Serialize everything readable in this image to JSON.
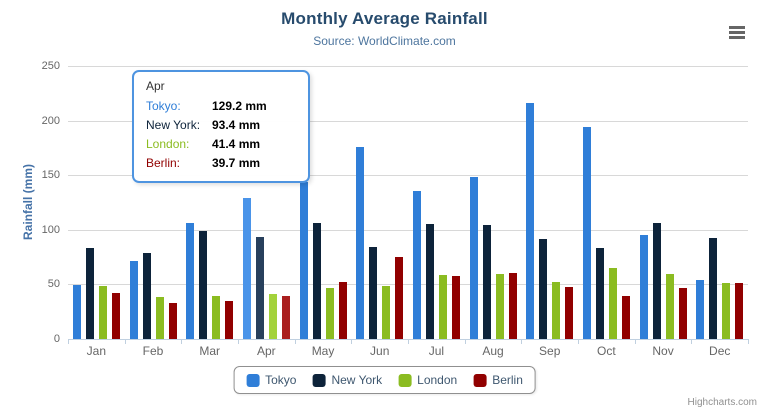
{
  "header": {
    "title": "Monthly Average Rainfall",
    "subtitle": "Source: WorldClimate.com"
  },
  "y_axis": {
    "title": "Rainfall (mm)"
  },
  "chart_data": {
    "type": "bar",
    "title": "Monthly Average Rainfall",
    "subtitle": "Source: WorldClimate.com",
    "xlabel": "",
    "ylabel": "Rainfall (mm)",
    "ylim": [
      0,
      250
    ],
    "y_ticks": [
      0,
      50,
      100,
      150,
      200,
      250
    ],
    "grid": true,
    "legend_position": "bottom-center",
    "categories": [
      "Jan",
      "Feb",
      "Mar",
      "Apr",
      "May",
      "Jun",
      "Jul",
      "Aug",
      "Sep",
      "Oct",
      "Nov",
      "Dec"
    ],
    "series": [
      {
        "name": "Tokyo",
        "color": "#2f7ed8",
        "hover_color": "#4a94e9",
        "values": [
          49.9,
          71.5,
          106.4,
          129.2,
          144.0,
          176.0,
          135.6,
          148.5,
          216.4,
          194.1,
          95.6,
          54.4
        ]
      },
      {
        "name": "New York",
        "color": "#0d233a",
        "hover_color": "#28405c",
        "values": [
          83.6,
          78.8,
          98.5,
          93.4,
          106.0,
          84.5,
          105.0,
          104.3,
          91.2,
          83.5,
          106.6,
          92.3
        ]
      },
      {
        "name": "London",
        "color": "#8bbc21",
        "hover_color": "#a3d23b",
        "values": [
          48.9,
          38.8,
          39.3,
          41.4,
          47.0,
          48.3,
          59.0,
          59.6,
          52.4,
          65.2,
          59.3,
          51.2
        ]
      },
      {
        "name": "Berlin",
        "color": "#910000",
        "hover_color": "#aa1f1f",
        "values": [
          42.4,
          33.2,
          34.5,
          39.7,
          52.6,
          75.5,
          57.4,
          60.4,
          47.6,
          39.1,
          46.8,
          51.1
        ]
      }
    ],
    "hovered_category": "Apr"
  },
  "tooltip": {
    "header": "Apr",
    "border_color": "#4e94e0",
    "rows": [
      {
        "label": "Tokyo:",
        "value": "129.2 mm",
        "color": "#2f7ed8"
      },
      {
        "label": "New York:",
        "value": "93.4 mm",
        "color": "#0d233a"
      },
      {
        "label": "London:",
        "value": "41.4 mm",
        "color": "#8bbc21"
      },
      {
        "label": "Berlin:",
        "value": "39.7 mm",
        "color": "#910000"
      }
    ]
  },
  "credits": {
    "label": "Highcharts.com"
  },
  "icons": {
    "context_menu": "hamburger-menu-icon"
  },
  "colors": {
    "title": "#274b6d",
    "subtitle": "#4d759e",
    "axis_title": "#4572a7",
    "axis_labels": "#666666",
    "grid": "#d8d8d8",
    "axis_line": "#c0d0e0",
    "legend_text": "#3e576f",
    "legend_border": "#909090",
    "credits": "#909090"
  }
}
